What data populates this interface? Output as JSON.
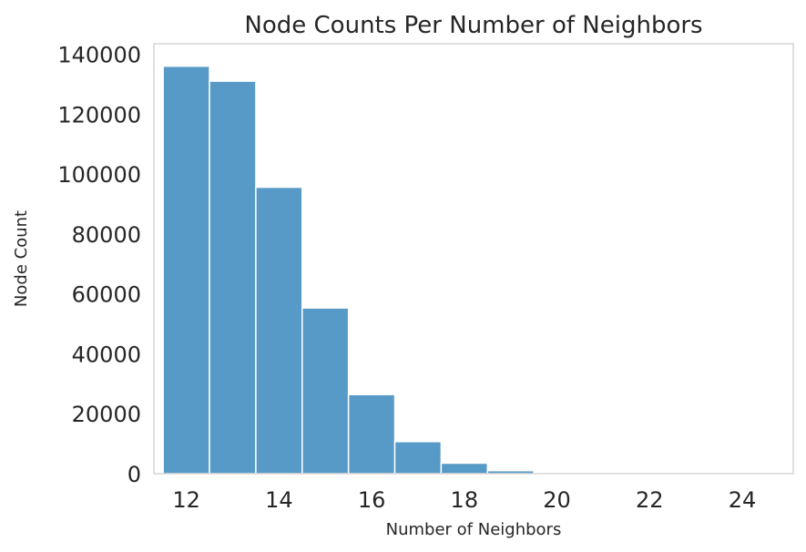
{
  "chart_data": {
    "type": "bar",
    "title": "Node Counts Per Number of Neighbors",
    "xlabel": "Number of Neighbors",
    "ylabel": "Node Count",
    "x_bins": [
      12,
      13,
      14,
      15,
      16,
      17,
      18,
      19,
      20,
      21,
      22,
      23,
      24
    ],
    "values": [
      136000,
      131000,
      95600,
      55300,
      26400,
      10700,
      3500,
      1000,
      200,
      60,
      20,
      8,
      3
    ],
    "xlim": [
      11.3,
      25.1
    ],
    "ylim": [
      0,
      143500
    ],
    "x_ticks": [
      12,
      14,
      16,
      18,
      20,
      22,
      24
    ],
    "y_ticks": [
      0,
      20000,
      40000,
      60000,
      80000,
      100000,
      120000,
      140000
    ],
    "grid": false,
    "legend": "none",
    "bar_color": "#5799c7"
  }
}
